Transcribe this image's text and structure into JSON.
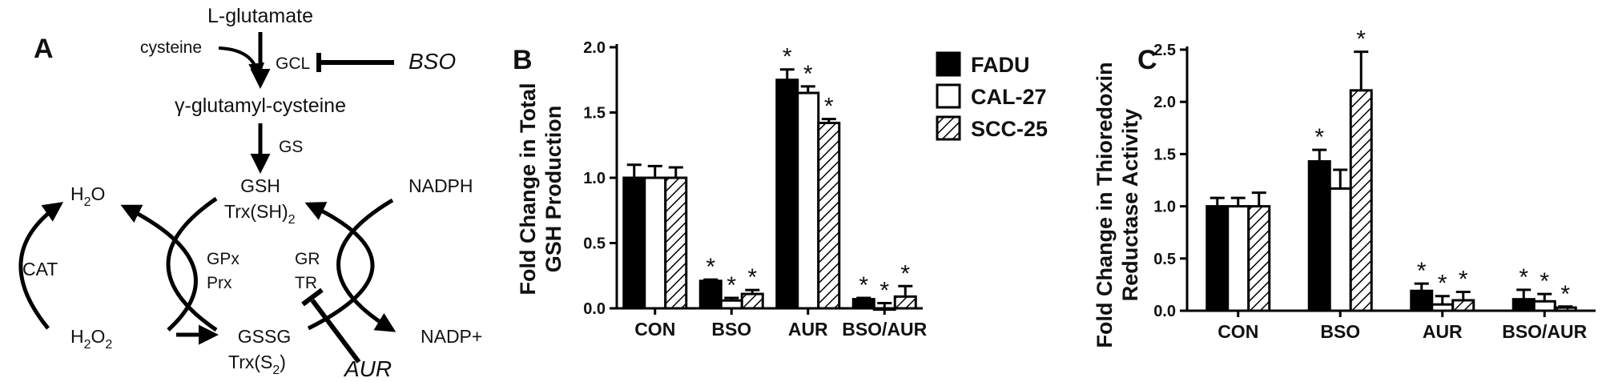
{
  "panel_a": {
    "panel_label": "A",
    "l_glutamate": "L-glutamate",
    "cysteine": "cysteine",
    "gcl": "GCL",
    "bso": "BSO",
    "gamma_glutamyl_cysteine": "γ-glutamyl-cysteine",
    "gs": "GS",
    "gsh": "GSH",
    "trx_sh2": "Trx(SH)",
    "trx_sh2_sub": "2",
    "nadph": "NADPH",
    "h2o": "H",
    "h2o_sub": "2",
    "h2o_end": "O",
    "cat": "CAT",
    "gpx": "GPx",
    "prx": "Prx",
    "gr": "GR",
    "tr": "TR",
    "h2o2": "H",
    "h2o2_sub1": "2",
    "h2o2_mid": "O",
    "h2o2_sub2": "2",
    "gssg": "GSSG",
    "trx_s2": "Trx(S",
    "trx_s2_sub": "2",
    "trx_s2_end": ")",
    "nadp": "NADP+",
    "aur": "AUR"
  },
  "legend": [
    "FADU",
    "CAL-27",
    "SCC-25"
  ],
  "colors": {
    "bar_edge": "#000000",
    "fill_fadu": "#000000",
    "fill_cal27": "#ffffff"
  },
  "chart_data": [
    {
      "type": "bar",
      "panel_label": "B",
      "ylabel": [
        "Fold Change in Total",
        "GSH Production"
      ],
      "xlabel": "",
      "categories": [
        "CON",
        "BSO",
        "AUR",
        "BSO/AUR"
      ],
      "ylim": [
        0,
        2.0
      ],
      "yticks": [
        "0.0",
        "0.5",
        "1.0",
        "1.5",
        "2.0"
      ],
      "series": [
        {
          "name": "FADU",
          "values": [
            1.0,
            0.21,
            1.75,
            0.07
          ],
          "errors": [
            0.1,
            0.01,
            0.08,
            0.01
          ],
          "significant": [
            false,
            true,
            true,
            true
          ]
        },
        {
          "name": "CAL-27",
          "values": [
            1.0,
            0.06,
            1.65,
            0.0
          ],
          "errors": [
            0.09,
            0.02,
            0.05,
            0.04
          ],
          "significant": [
            false,
            true,
            true,
            true
          ]
        },
        {
          "name": "SCC-25",
          "values": [
            1.0,
            0.11,
            1.42,
            0.09
          ],
          "errors": [
            0.08,
            0.03,
            0.03,
            0.08
          ],
          "significant": [
            false,
            true,
            true,
            true
          ]
        }
      ],
      "marker": "*",
      "legend_position": "top-right"
    },
    {
      "type": "bar",
      "panel_label": "C",
      "ylabel": [
        "Fold Change in Thioredoxin",
        "Reductase Activity"
      ],
      "xlabel": "",
      "categories": [
        "CON",
        "BSO",
        "AUR",
        "BSO/AUR"
      ],
      "ylim": [
        0,
        2.5
      ],
      "yticks": [
        "0.0",
        "0.5",
        "1.0",
        "1.5",
        "2.0",
        "2.5"
      ],
      "series": [
        {
          "name": "FADU",
          "values": [
            1.0,
            1.43,
            0.19,
            0.11
          ],
          "errors": [
            0.08,
            0.11,
            0.07,
            0.09
          ],
          "significant": [
            false,
            true,
            true,
            true
          ]
        },
        {
          "name": "CAL-27",
          "values": [
            1.0,
            1.17,
            0.06,
            0.09
          ],
          "errors": [
            0.08,
            0.18,
            0.08,
            0.07
          ],
          "significant": [
            false,
            false,
            true,
            true
          ]
        },
        {
          "name": "SCC-25",
          "values": [
            1.0,
            2.11,
            0.1,
            0.03
          ],
          "errors": [
            0.13,
            0.37,
            0.08,
            0.01
          ],
          "significant": [
            false,
            true,
            true,
            true
          ]
        }
      ],
      "marker": "*"
    }
  ]
}
